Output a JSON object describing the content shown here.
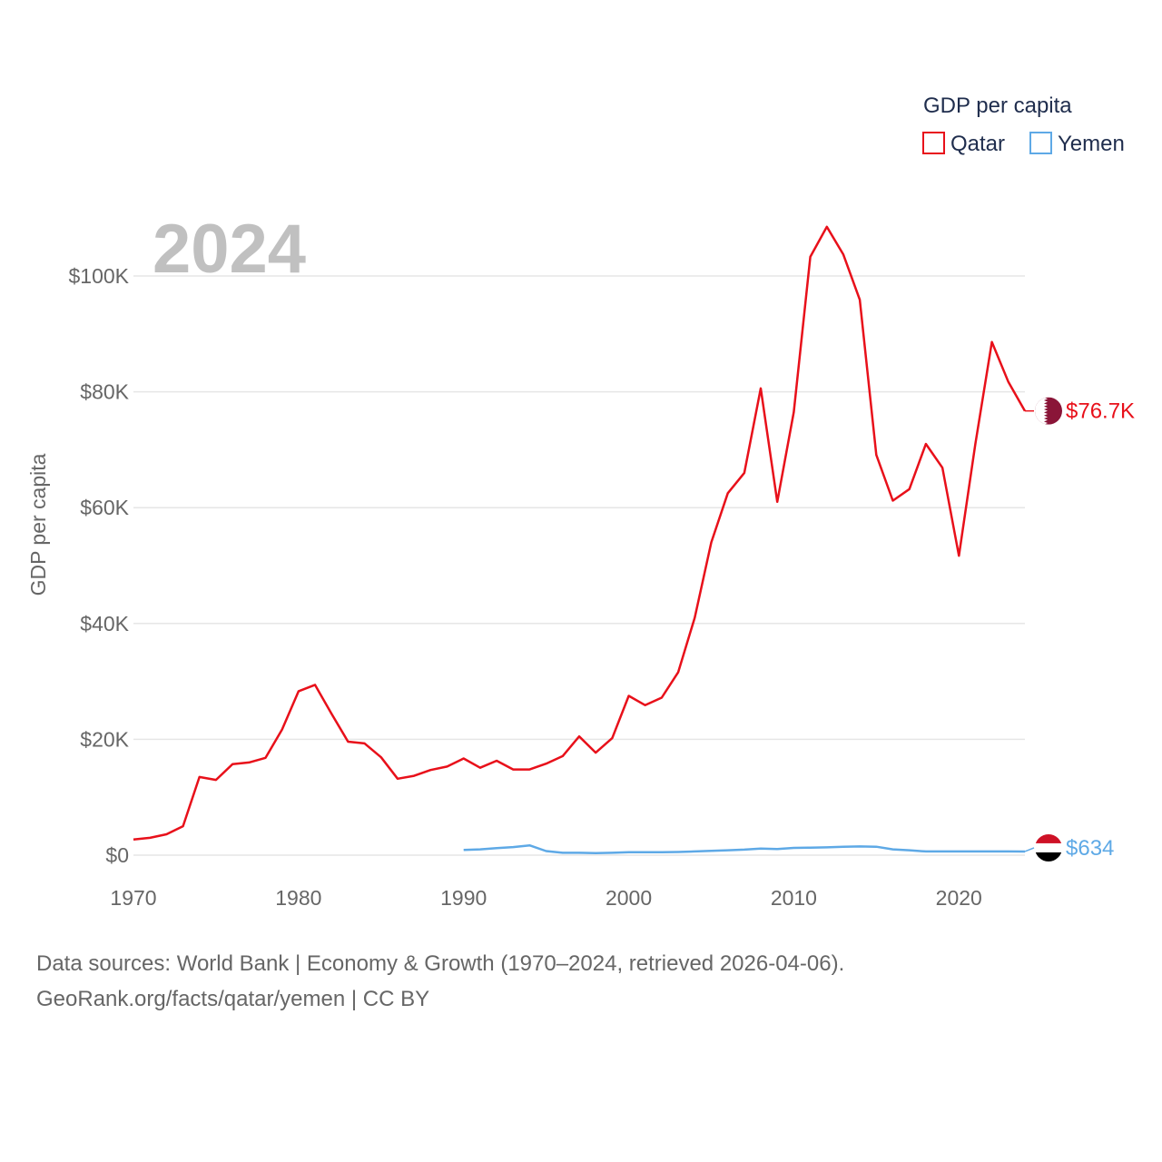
{
  "chart_data": {
    "type": "line",
    "title": "",
    "year_label": "2024",
    "ylabel": "GDP per capita",
    "xlabel": "",
    "xlim": [
      1970,
      2024
    ],
    "ylim": [
      0,
      110000
    ],
    "x_ticks": [
      "1970",
      "1980",
      "1990",
      "2000",
      "2010",
      "2020"
    ],
    "x_tick_values": [
      1970,
      1980,
      1990,
      2000,
      2010,
      2020
    ],
    "y_ticks": [
      "$0",
      "$20K",
      "$40K",
      "$60K",
      "$80K",
      "$100K"
    ],
    "y_tick_values": [
      0,
      20000,
      40000,
      60000,
      80000,
      100000
    ],
    "grid": true,
    "legend": {
      "title": "GDP per capita",
      "position": "top-right",
      "items": [
        {
          "name": "Qatar",
          "color": "#e8101a"
        },
        {
          "name": "Yemen",
          "color": "#5ea9e6"
        }
      ]
    },
    "series": [
      {
        "name": "Qatar",
        "color": "#e8101a",
        "end_label": "$76.7K",
        "x": [
          1970,
          1971,
          1972,
          1973,
          1974,
          1975,
          1976,
          1977,
          1978,
          1979,
          1980,
          1981,
          1982,
          1983,
          1984,
          1985,
          1986,
          1987,
          1988,
          1989,
          1990,
          1991,
          1992,
          1993,
          1994,
          1995,
          1996,
          1997,
          1998,
          1999,
          2000,
          2001,
          2002,
          2003,
          2004,
          2005,
          2006,
          2007,
          2008,
          2009,
          2010,
          2011,
          2012,
          2013,
          2014,
          2015,
          2016,
          2017,
          2018,
          2019,
          2020,
          2021,
          2022,
          2023,
          2024
        ],
        "values": [
          2700,
          3000,
          3600,
          5000,
          13500,
          13000,
          15700,
          16000,
          16800,
          21700,
          28300,
          29400,
          24400,
          19600,
          19300,
          16900,
          13200,
          13700,
          14700,
          15300,
          16700,
          15100,
          16300,
          14800,
          14800,
          15800,
          17100,
          20500,
          17700,
          20200,
          27500,
          25900,
          27200,
          31600,
          41000,
          54000,
          62500,
          66000,
          80600,
          61000,
          76500,
          103300,
          108500,
          103700,
          95900,
          69100,
          61200,
          63200,
          71000,
          66900,
          51700,
          71000,
          88600,
          81700,
          76700
        ]
      },
      {
        "name": "Yemen",
        "color": "#5ea9e6",
        "end_label": "$634",
        "x": [
          1990,
          1991,
          1992,
          1993,
          1994,
          1995,
          1996,
          1997,
          1998,
          1999,
          2000,
          2001,
          2002,
          2003,
          2004,
          2005,
          2006,
          2007,
          2008,
          2009,
          2010,
          2011,
          2012,
          2013,
          2014,
          2015,
          2016,
          2017,
          2018,
          2019,
          2020,
          2021,
          2022,
          2023,
          2024
        ],
        "values": [
          900,
          1000,
          1200,
          1400,
          1700,
          700,
          400,
          400,
          350,
          400,
          500,
          500,
          500,
          550,
          650,
          750,
          850,
          950,
          1150,
          1050,
          1250,
          1300,
          1350,
          1450,
          1500,
          1450,
          1000,
          850,
          650,
          650,
          650,
          650,
          650,
          650,
          634
        ]
      }
    ]
  },
  "source": {
    "line1": "Data sources: World Bank | Economy & Growth (1970–2024, retrieved 2026-04-06).",
    "line2": "GeoRank.org/facts/qatar/yemen | CC BY"
  }
}
